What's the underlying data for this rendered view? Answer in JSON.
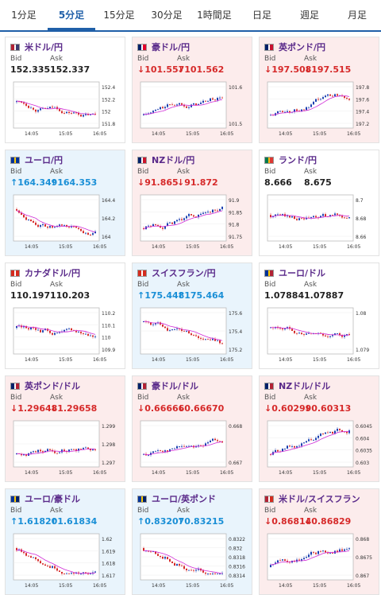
{
  "tabs": [
    {
      "label": "1分足",
      "active": false
    },
    {
      "label": "5分足",
      "active": true
    },
    {
      "label": "15分足",
      "active": false
    },
    {
      "label": "30分足",
      "active": false
    },
    {
      "label": "1時間足",
      "active": false
    },
    {
      "label": "日足",
      "active": false
    },
    {
      "label": "週足",
      "active": false
    },
    {
      "label": "月足",
      "active": false
    }
  ],
  "labels": {
    "bid": "Bid",
    "ask": "Ask"
  },
  "x_ticks": [
    "14:05",
    "15:05",
    "16:05"
  ],
  "colors": {
    "up": "#e9f4fc",
    "down": "#fcecec",
    "accent": "#1f5fa8",
    "candle_up": "#d62a2a",
    "candle_down": "#1a3fb0",
    "ma": "#d02ad6"
  },
  "cards": [
    {
      "pair": "米ドル/円",
      "bid": "152.335",
      "ask": "152.337",
      "dir": "flat",
      "yticks": [
        "152.4",
        "152.2",
        "152",
        "151.8"
      ]
    },
    {
      "pair": "豪ドル/円",
      "bid": "↓101.557",
      "ask": "↓101.562",
      "dir": "down",
      "yticks": [
        "101.6",
        "101.5"
      ]
    },
    {
      "pair": "英ポンド/円",
      "bid": "↓197.508",
      "ask": "↓197.515",
      "dir": "down",
      "yticks": [
        "197.8",
        "197.6",
        "197.4",
        "197.2"
      ]
    },
    {
      "pair": "ユーロ/円",
      "bid": "↑164.349",
      "ask": "↑164.353",
      "dir": "up",
      "yticks": [
        "164.4",
        "164.2",
        "164"
      ]
    },
    {
      "pair": "NZドル/円",
      "bid": "↓91.865",
      "ask": "↓91.872",
      "dir": "down",
      "yticks": [
        "91.9",
        "91.85",
        "91.8",
        "91.75"
      ]
    },
    {
      "pair": "ランド/円",
      "bid": "8.666",
      "ask": "8.675",
      "dir": "flat",
      "yticks": [
        "8.7",
        "8.68",
        "8.66"
      ]
    },
    {
      "pair": "カナダドル/円",
      "bid": "110.197",
      "ask": "110.203",
      "dir": "flat",
      "yticks": [
        "110.2",
        "110.1",
        "110",
        "109.9"
      ]
    },
    {
      "pair": "スイスフラン/円",
      "bid": "↑175.448",
      "ask": "↑175.464",
      "dir": "up",
      "yticks": [
        "175.6",
        "175.4",
        "175.2"
      ]
    },
    {
      "pair": "ユーロ/ドル",
      "bid": "1.07884",
      "ask": "1.07887",
      "dir": "flat",
      "yticks": [
        "1.08",
        "1.079"
      ]
    },
    {
      "pair": "英ポンド/ドル",
      "bid": "↓1.29648",
      "ask": "↓1.29658",
      "dir": "down",
      "yticks": [
        "1.299",
        "1.298",
        "1.297"
      ]
    },
    {
      "pair": "豪ドル/ドル",
      "bid": "↓0.66666",
      "ask": "↓0.66670",
      "dir": "down",
      "yticks": [
        "0.668",
        "0.667"
      ]
    },
    {
      "pair": "NZドル/ドル",
      "bid": "↓0.60299",
      "ask": "↓0.60313",
      "dir": "down",
      "yticks": [
        "0.6045",
        "0.604",
        "0.6035",
        "0.603"
      ]
    },
    {
      "pair": "ユーロ/豪ドル",
      "bid": "↑1.61820",
      "ask": "↑1.61834",
      "dir": "up",
      "yticks": [
        "1.62",
        "1.619",
        "1.618",
        "1.617"
      ]
    },
    {
      "pair": "ユーロ/英ポンド",
      "bid": "↑0.83207",
      "ask": "↑0.83215",
      "dir": "up",
      "yticks": [
        "0.8322",
        "0.832",
        "0.8318",
        "0.8316",
        "0.8314"
      ]
    },
    {
      "pair": "米ドル/スイスフラン",
      "bid": "↓0.86814",
      "ask": "↓0.86829",
      "dir": "down",
      "yticks": [
        "0.868",
        "0.8675",
        "0.867"
      ]
    }
  ]
}
